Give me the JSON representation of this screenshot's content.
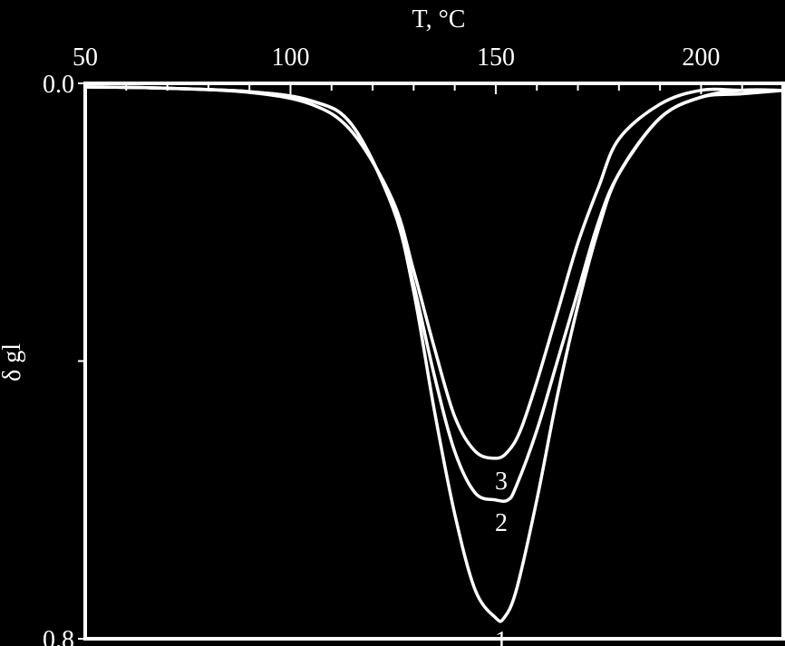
{
  "chart_data": {
    "type": "line",
    "xlabel": "T, °C",
    "ylabel": "δ gl",
    "x_ticks": [
      {
        "value": 50,
        "label": "50"
      },
      {
        "value": 100,
        "label": "100"
      },
      {
        "value": 150,
        "label": "150"
      },
      {
        "value": 200,
        "label": "200"
      }
    ],
    "y_ticks": [
      {
        "value": 0.0,
        "label": "0.0"
      },
      {
        "value": 0.8,
        "label": "0.8"
      }
    ],
    "xlim": [
      50,
      220
    ],
    "ylim": [
      0,
      0.8
    ],
    "x_minor_step": 10,
    "y_minor_step": 0.4,
    "orientation_note": "",
    "series": [
      {
        "name": "1",
        "x": [
          50,
          70,
          90,
          105,
          115,
          125,
          130,
          135,
          140,
          145,
          150,
          152,
          155,
          160,
          165,
          170,
          175,
          180,
          190,
          200,
          210,
          220
        ],
        "y": [
          0.005,
          0.007,
          0.012,
          0.025,
          0.06,
          0.18,
          0.3,
          0.47,
          0.62,
          0.73,
          0.77,
          0.77,
          0.73,
          0.6,
          0.45,
          0.32,
          0.21,
          0.13,
          0.05,
          0.02,
          0.015,
          0.01
        ]
      },
      {
        "name": "2",
        "x": [
          50,
          70,
          90,
          105,
          115,
          125,
          130,
          135,
          140,
          145,
          150,
          153,
          155,
          160,
          165,
          170,
          175,
          180,
          190,
          200,
          210,
          220
        ],
        "y": [
          0.005,
          0.007,
          0.012,
          0.025,
          0.06,
          0.18,
          0.29,
          0.42,
          0.53,
          0.59,
          0.6,
          0.6,
          0.58,
          0.5,
          0.4,
          0.3,
          0.2,
          0.13,
          0.05,
          0.02,
          0.01,
          0.01
        ]
      },
      {
        "name": "3",
        "x": [
          50,
          70,
          90,
          105,
          115,
          125,
          130,
          135,
          140,
          145,
          150,
          153,
          156,
          160,
          165,
          170,
          175,
          180,
          190,
          200,
          210,
          220
        ],
        "y": [
          0.005,
          0.007,
          0.013,
          0.03,
          0.07,
          0.17,
          0.27,
          0.38,
          0.48,
          0.53,
          0.54,
          0.53,
          0.5,
          0.43,
          0.33,
          0.23,
          0.15,
          0.08,
          0.03,
          0.01,
          0.01,
          0.01
        ]
      }
    ],
    "curve_labels": [
      "1",
      "2",
      "3"
    ]
  }
}
